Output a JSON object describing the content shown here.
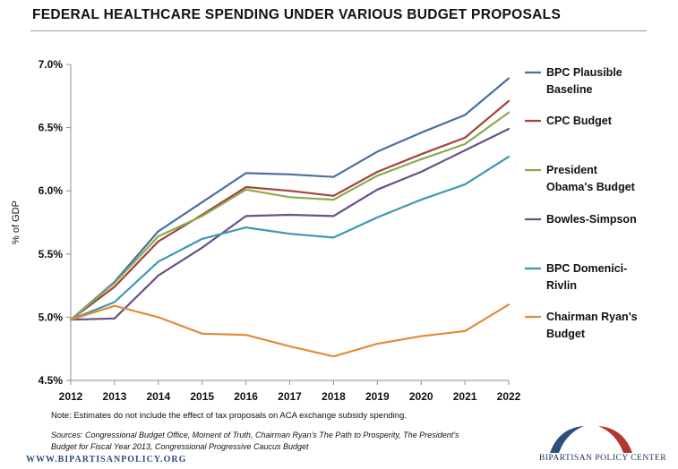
{
  "chart_data": {
    "type": "line",
    "title": "FEDERAL HEALTHCARE SPENDING UNDER VARIOUS BUDGET PROPOSALS",
    "xlabel": "",
    "ylabel": "% of GDP",
    "ylim": [
      4.5,
      7.0
    ],
    "yticks": [
      4.5,
      5.0,
      5.5,
      6.0,
      6.5,
      7.0
    ],
    "ytick_labels": [
      "4.5%",
      "5.0%",
      "5.5%",
      "6.0%",
      "6.5%",
      "7.0%"
    ],
    "x": [
      2012,
      2013,
      2014,
      2015,
      2016,
      2017,
      2018,
      2019,
      2020,
      2021,
      2022
    ],
    "x_labels": [
      "2012",
      "2013",
      "2014",
      "2015",
      "2016",
      "2017",
      "2018",
      "2019",
      "2020",
      "2021",
      "2022"
    ],
    "grid": false,
    "legend_position": "right",
    "series": [
      {
        "name": "BPC Plausible Baseline",
        "legend_lines": [
          "BPC Plausible",
          "Baseline"
        ],
        "color": "#4a6fa0",
        "values": [
          4.98,
          5.28,
          5.68,
          5.91,
          6.14,
          6.13,
          6.11,
          6.31,
          6.46,
          6.6,
          6.89
        ]
      },
      {
        "name": "CPC Budget",
        "legend_lines": [
          "CPC Budget"
        ],
        "color": "#a4423f",
        "values": [
          4.98,
          5.24,
          5.6,
          5.81,
          6.03,
          6.0,
          5.96,
          6.15,
          6.29,
          6.42,
          6.71
        ]
      },
      {
        "name": "President Obama's Budget",
        "legend_lines": [
          "President",
          "Obama's Budget"
        ],
        "color": "#8aab4d",
        "values": [
          4.98,
          5.27,
          5.64,
          5.8,
          6.01,
          5.95,
          5.93,
          6.12,
          6.25,
          6.37,
          6.62
        ]
      },
      {
        "name": "Bowles-Simpson",
        "legend_lines": [
          "Bowles-Simpson"
        ],
        "color": "#6c4f8a",
        "values": [
          4.98,
          4.99,
          5.33,
          5.55,
          5.8,
          5.81,
          5.8,
          6.01,
          6.15,
          6.32,
          6.49
        ]
      },
      {
        "name": "BPC Domenici-Rivlin",
        "legend_lines": [
          "BPC Domenici-",
          "Rivlin"
        ],
        "color": "#3d98b0",
        "values": [
          4.98,
          5.12,
          5.44,
          5.62,
          5.71,
          5.66,
          5.63,
          5.79,
          5.93,
          6.05,
          6.27
        ]
      },
      {
        "name": "Chairman Ryan's Budget",
        "legend_lines": [
          "Chairman Ryan's",
          "Budget"
        ],
        "color": "#e08c3a",
        "values": [
          4.98,
          5.09,
          5.0,
          4.87,
          4.86,
          4.77,
          4.69,
          4.79,
          4.85,
          4.89,
          5.1
        ]
      }
    ]
  },
  "footer": {
    "note": "Note: Estimates do not include the effect of tax proposals on ACA exchange subsidy spending.",
    "sources": "Sources: Congressional Budget Office, Moment of Truth, Chairman Ryan’s The Path to Prosperity, The President’s Budget for Fiscal Year 2013, Congressional Progressive Caucus Budget",
    "url": "WWW.BIPARTISANPOLICY.ORG",
    "logo_text": "BIPARTISAN POLICY CENTER"
  }
}
